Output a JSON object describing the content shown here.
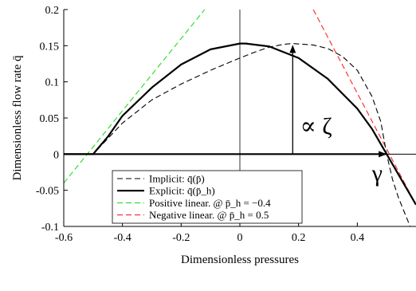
{
  "chart_data": {
    "type": "line",
    "xlabel": "Dimensionless pressures",
    "ylabel": "Dimensionless flow rate q̄",
    "xlim": [
      -0.6,
      0.6
    ],
    "ylim": [
      -0.1,
      0.2
    ],
    "xticks": [
      "-0.6",
      "-0.4",
      "-0.2",
      "0",
      "0.2",
      "0.4"
    ],
    "xtick_values": [
      -0.6,
      -0.4,
      -0.2,
      0,
      0.2,
      0.4
    ],
    "yticks": [
      "-0.1",
      "-0.05",
      "0",
      "0.05",
      "0.1",
      "0.15",
      "0.2"
    ],
    "ytick_values": [
      -0.1,
      -0.05,
      0,
      0.05,
      0.1,
      0.15,
      0.2
    ],
    "grid": false,
    "legend_position": "bottom-center",
    "series": [
      {
        "name": "Implicit: q̄(p̄)",
        "color": "#000000",
        "style": "dashed",
        "x": [
          -0.6,
          -0.5,
          -0.45,
          -0.4,
          -0.3,
          -0.2,
          -0.1,
          0,
          0.05,
          0.1,
          0.15,
          0.18,
          0.25,
          0.3,
          0.35,
          0.4,
          0.45,
          0.48,
          0.5,
          0.52,
          0.54,
          0.56,
          0.58
        ],
        "y": [
          0,
          0,
          0.0215,
          0.043,
          0.075,
          0.097,
          0.116,
          0.133,
          0.141,
          0.148,
          0.152,
          0.153,
          0.151,
          0.146,
          0.135,
          0.116,
          0.08,
          0.045,
          0,
          -0.035,
          -0.06,
          -0.08,
          -0.1
        ]
      },
      {
        "name": "Explicit: q̄(p̄_h)",
        "color": "#000000",
        "style": "solid-thick",
        "x": [
          -0.6,
          -0.5,
          -0.45,
          -0.4,
          -0.3,
          -0.2,
          -0.1,
          0,
          0.02,
          0.1,
          0.2,
          0.3,
          0.4,
          0.45,
          0.5,
          0.55,
          0.6
        ],
        "y": [
          0,
          0,
          0.024,
          0.053,
          0.092,
          0.124,
          0.145,
          0.153,
          0.153,
          0.149,
          0.133,
          0.104,
          0.063,
          0.035,
          0,
          -0.035,
          -0.07
        ]
      },
      {
        "name": "Positive linear. @ p̄_h = −0.4",
        "color": "#22dd22",
        "style": "dashed",
        "x": [
          -0.6,
          -0.12
        ],
        "y": [
          -0.04,
          0.2
        ]
      },
      {
        "name": "Negative linear. @ p̄_h = 0.5",
        "color": "#ff2222",
        "style": "dashed",
        "x": [
          0.25,
          0.6
        ],
        "y": [
          0.2,
          -0.07
        ]
      }
    ],
    "annotations": [
      {
        "text": "∝ ζ",
        "x": 0.22,
        "y": 0.03
      },
      {
        "text": "γ",
        "x": 0.45,
        "y": -0.03
      }
    ],
    "legend": [
      "Implicit: q̄(p̄)",
      "Explicit: q̄(p̄_h)",
      "Positive linear. @ p̄_h = −0.4",
      "Negative linear. @ p̄_h = 0.5"
    ]
  }
}
